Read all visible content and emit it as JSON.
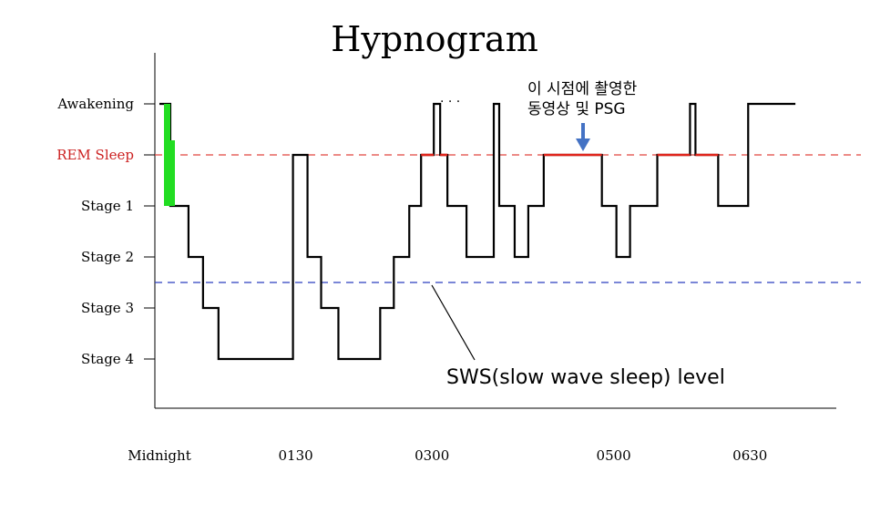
{
  "chart_data": {
    "type": "line",
    "title": "Hypnogram",
    "xlabel": "",
    "ylabel": "",
    "y_categories": [
      "Awakening",
      "REM Sleep",
      "Stage 1",
      "Stage 2",
      "Stage 3",
      "Stage 4"
    ],
    "x_tick_labels": [
      "Midnight",
      "0130",
      "0300",
      "0500",
      "0630"
    ],
    "x_ticks_hours": [
      0,
      1.5,
      3,
      5,
      6.5
    ],
    "xlim_hours": [
      -0.05,
      7.45
    ],
    "series": [
      {
        "steps": [
          {
            "t": 0.0,
            "stage": "Awakening"
          },
          {
            "t": 0.12,
            "stage": "Stage 1"
          },
          {
            "t": 0.32,
            "stage": "Stage 2"
          },
          {
            "t": 0.48,
            "stage": "Stage 3"
          },
          {
            "t": 0.65,
            "stage": "Stage 4"
          },
          {
            "t": 1.47,
            "stage": "REM Sleep"
          },
          {
            "t": 1.63,
            "stage": "Stage 2"
          },
          {
            "t": 1.78,
            "stage": "Stage 3"
          },
          {
            "t": 1.97,
            "stage": "Stage 4"
          },
          {
            "t": 2.43,
            "stage": "Stage 3"
          },
          {
            "t": 2.58,
            "stage": "Stage 2"
          },
          {
            "t": 2.75,
            "stage": "Stage 1"
          },
          {
            "t": 2.88,
            "stage": "REM Sleep"
          },
          {
            "t": 3.02,
            "stage": "Awakening"
          },
          {
            "t": 3.09,
            "stage": "REM Sleep"
          },
          {
            "t": 3.17,
            "stage": "Stage 1"
          },
          {
            "t": 3.38,
            "stage": "Stage 2"
          },
          {
            "t": 3.68,
            "stage": "Awakening"
          },
          {
            "t": 3.74,
            "stage": "Stage 1"
          },
          {
            "t": 3.91,
            "stage": "Stage 2"
          },
          {
            "t": 4.06,
            "stage": "Stage 1"
          },
          {
            "t": 4.23,
            "stage": "REM Sleep"
          },
          {
            "t": 4.87,
            "stage": "Stage 1"
          },
          {
            "t": 5.03,
            "stage": "Stage 2"
          },
          {
            "t": 5.18,
            "stage": "Stage 1"
          },
          {
            "t": 5.48,
            "stage": "REM Sleep"
          },
          {
            "t": 5.84,
            "stage": "Awakening"
          },
          {
            "t": 5.9,
            "stage": "REM Sleep"
          },
          {
            "t": 6.15,
            "stage": "Stage 1"
          },
          {
            "t": 6.48,
            "stage": "Awakening"
          },
          {
            "t": 7.0,
            "stage": "Awakening"
          }
        ]
      }
    ],
    "rem_segments": [
      [
        2.88,
        3.02
      ],
      [
        3.09,
        3.17
      ],
      [
        4.23,
        4.87
      ],
      [
        5.48,
        5.84
      ],
      [
        5.9,
        6.15
      ]
    ],
    "green_marker_range": [
      "Stage 1",
      "Awakening"
    ],
    "dashed_lines": [
      {
        "level": "REM Sleep",
        "color": "#e0453f"
      },
      {
        "level": "between Stage 2 and Stage 3",
        "color": "#2a3fbf"
      }
    ],
    "annotations": {
      "camera_note_line1": "이 시점에 촬영한",
      "camera_note_line2": "동영상 및 PSG",
      "sws_label": "SWS(slow wave sleep) level"
    },
    "colors": {
      "hypnogram": "#000000",
      "rem_highlight": "#e0231a",
      "rem_label": "#cc2222",
      "awake_marker": "#22dd22",
      "arrow": "#4472c4",
      "sws_line": "#2a3fbf"
    }
  }
}
